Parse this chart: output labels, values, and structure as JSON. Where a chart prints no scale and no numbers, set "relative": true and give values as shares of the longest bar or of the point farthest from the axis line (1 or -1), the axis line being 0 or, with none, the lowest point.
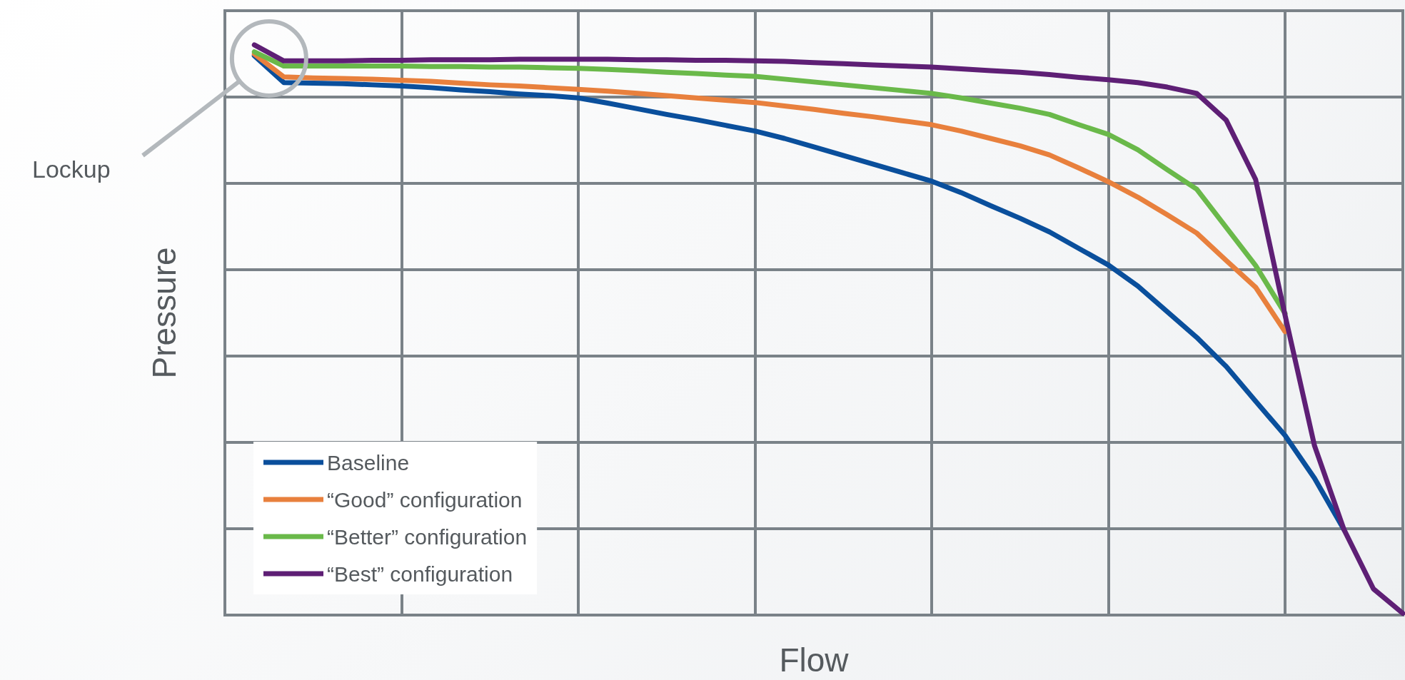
{
  "chart_data": {
    "type": "line",
    "xlabel": "Flow",
    "ylabel": "Pressure",
    "relative": true,
    "categories": [
      null,
      null,
      null,
      null,
      null,
      null,
      null,
      null,
      null,
      null,
      null,
      null,
      null,
      null,
      null,
      null,
      null,
      null,
      null,
      null,
      null,
      null,
      null,
      null,
      null,
      null,
      null,
      null,
      null,
      null,
      null,
      null,
      null,
      null,
      null,
      null,
      null,
      null,
      null,
      null,
      null
    ],
    "grid": true,
    "legend": "bottom left",
    "marker": "none",
    "line_style": "solid",
    "annotations": [
      "Lockup"
    ],
    "series": [
      {
        "name": "Baseline",
        "color": "#0a4f9c",
        "values": [
          null,
          0.981,
          0.934,
          0.933,
          0.932,
          0.93,
          0.928,
          0.925,
          0.921,
          0.918,
          0.914,
          0.911,
          0.907,
          0.898,
          0.888,
          0.878,
          0.869,
          0.859,
          0.849,
          0.836,
          0.821,
          0.806,
          0.791,
          0.776,
          0.761,
          0.741,
          0.718,
          0.696,
          0.672,
          0.643,
          0.614,
          0.577,
          0.532,
          0.487,
          0.436,
          0.375,
          0.315,
          0.24,
          0.15,
          null,
          null
        ]
      },
      {
        "name": "“Good” configuration",
        "color": "#e8803d",
        "values": [
          null,
          0.984,
          0.944,
          0.942,
          0.941,
          0.94,
          0.938,
          0.936,
          0.933,
          0.93,
          0.928,
          0.925,
          0.922,
          0.919,
          0.915,
          0.911,
          0.907,
          0.903,
          0.899,
          0.893,
          0.887,
          0.88,
          0.874,
          0.867,
          0.86,
          0.849,
          0.836,
          0.823,
          0.807,
          0.784,
          0.76,
          0.733,
          0.702,
          0.67,
          0.622,
          0.575,
          0.497,
          null,
          null,
          null,
          null
        ]
      },
      {
        "name": "“Better” configuration",
        "color": "#6ab94a",
        "values": [
          null,
          0.988,
          0.963,
          0.963,
          0.963,
          0.963,
          0.963,
          0.962,
          0.962,
          0.961,
          0.961,
          0.96,
          0.959,
          0.957,
          0.955,
          0.952,
          0.95,
          0.947,
          0.945,
          0.94,
          0.935,
          0.93,
          0.925,
          0.92,
          0.915,
          0.907,
          0.898,
          0.889,
          0.878,
          0.86,
          0.843,
          0.816,
          0.781,
          0.747,
          0.68,
          0.613,
          0.529,
          null,
          null,
          null,
          null
        ]
      },
      {
        "name": "“Best” configuration",
        "color": "#5e1f75",
        "values": [
          null,
          1,
          0.972,
          0.972,
          0.972,
          0.973,
          0.973,
          0.974,
          0.974,
          0.974,
          0.975,
          0.975,
          0.975,
          0.975,
          0.974,
          0.974,
          0.973,
          0.973,
          0.972,
          0.971,
          0.969,
          0.967,
          0.965,
          0.963,
          0.961,
          0.958,
          0.955,
          0.952,
          0.948,
          0.943,
          0.939,
          0.934,
          0.926,
          0.915,
          0.868,
          0.764,
          0.526,
          0.297,
          0.15,
          0.046,
          0.003
        ]
      }
    ]
  }
}
